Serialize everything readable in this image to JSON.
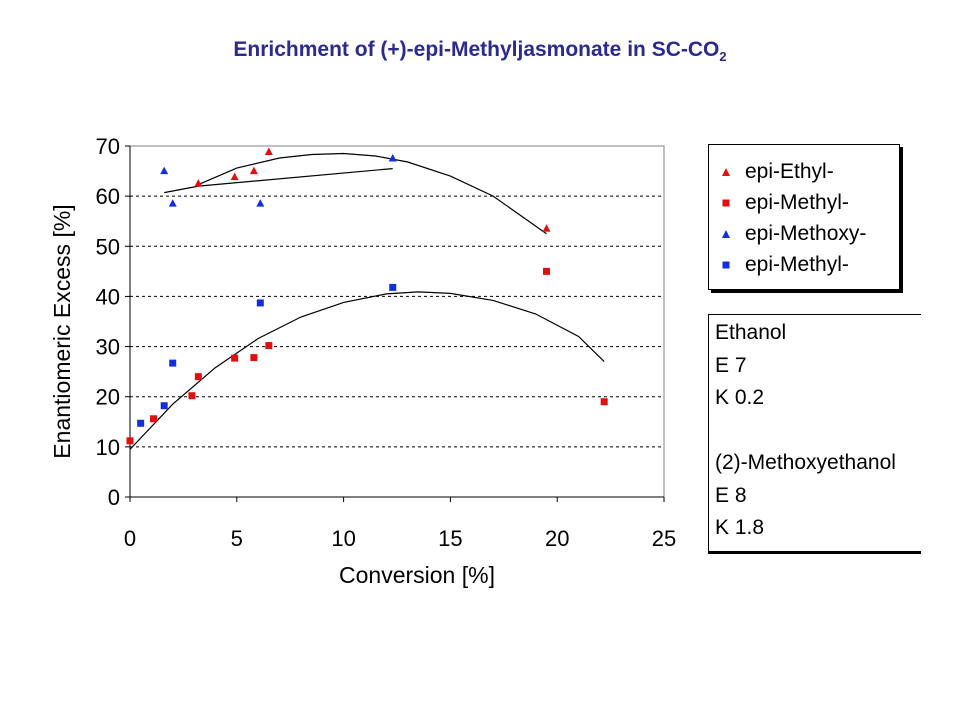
{
  "title": {
    "main": "Enrichment of (+)-epi-Methyljasmonate in SC-CO",
    "sub": "2"
  },
  "chart_data": {
    "type": "scatter",
    "xlabel": "Conversion [%]",
    "ylabel": "Enantiomeric Excess [%]",
    "xlim": [
      0,
      25
    ],
    "ylim": [
      0,
      70
    ],
    "x_ticks": [
      "0",
      "5",
      "10",
      "15",
      "20",
      "25"
    ],
    "y_ticks": [
      "0",
      "10",
      "20",
      "30",
      "40",
      "50",
      "60",
      "70"
    ],
    "grid": "horizontal dashed",
    "legend_position": "right",
    "series": [
      {
        "name": "epi-Ethyl-",
        "marker": "triangle",
        "color": "#e01010",
        "points": [
          [
            3.2,
            62.5
          ],
          [
            4.9,
            63.8
          ],
          [
            5.8,
            65.0
          ],
          [
            6.5,
            68.8
          ],
          [
            19.5,
            53.5
          ]
        ]
      },
      {
        "name": "epi-Methyl-",
        "marker": "square",
        "color": "#e01010",
        "points": [
          [
            0.0,
            11.2
          ],
          [
            1.1,
            15.6
          ],
          [
            2.9,
            20.2
          ],
          [
            3.2,
            24.0
          ],
          [
            4.9,
            27.7
          ],
          [
            5.8,
            27.8
          ],
          [
            6.5,
            30.2
          ],
          [
            19.5,
            45.0
          ],
          [
            22.2,
            19.0
          ]
        ]
      },
      {
        "name": "epi-Methoxy-",
        "marker": "triangle",
        "color": "#1030e0",
        "points": [
          [
            1.6,
            65.0
          ],
          [
            2.0,
            58.5
          ],
          [
            6.1,
            58.5
          ],
          [
            12.3,
            67.5
          ]
        ]
      },
      {
        "name": "epi-Methyl-",
        "marker": "square",
        "color": "#1030e0",
        "points": [
          [
            0.5,
            14.7
          ],
          [
            1.6,
            18.2
          ],
          [
            2.0,
            26.7
          ],
          [
            6.1,
            38.7
          ],
          [
            12.3,
            41.8
          ]
        ]
      }
    ],
    "trend_curves": [
      {
        "name": "",
        "points": [
          [
            3.2,
            62.3
          ],
          [
            5.0,
            65.6
          ],
          [
            7.0,
            67.6
          ],
          [
            8.5,
            68.3
          ],
          [
            10.0,
            68.5
          ],
          [
            11.5,
            68.0
          ],
          [
            13.0,
            66.8
          ],
          [
            15.0,
            64.0
          ],
          [
            17.0,
            60.0
          ],
          [
            19.5,
            52.5
          ]
        ]
      },
      {
        "name": "",
        "points": [
          [
            1.6,
            60.7
          ],
          [
            3.2,
            62.0
          ],
          [
            12.3,
            65.5
          ]
        ]
      },
      {
        "name": "",
        "points": [
          [
            0.0,
            9.5
          ],
          [
            2.0,
            18.5
          ],
          [
            4.0,
            25.8
          ],
          [
            6.0,
            31.6
          ],
          [
            8.0,
            35.9
          ],
          [
            10.0,
            38.8
          ],
          [
            12.0,
            40.5
          ],
          [
            13.5,
            40.9
          ],
          [
            15.0,
            40.6
          ],
          [
            17.0,
            39.2
          ],
          [
            19.0,
            36.5
          ],
          [
            21.0,
            32.0
          ],
          [
            22.2,
            27.0
          ]
        ]
      }
    ]
  },
  "notes": {
    "lines": [
      "Ethanol",
      "E 7",
      "K 0.2",
      "",
      "(2)-Methoxyethanol",
      "E 8",
      "K 1.8"
    ]
  }
}
